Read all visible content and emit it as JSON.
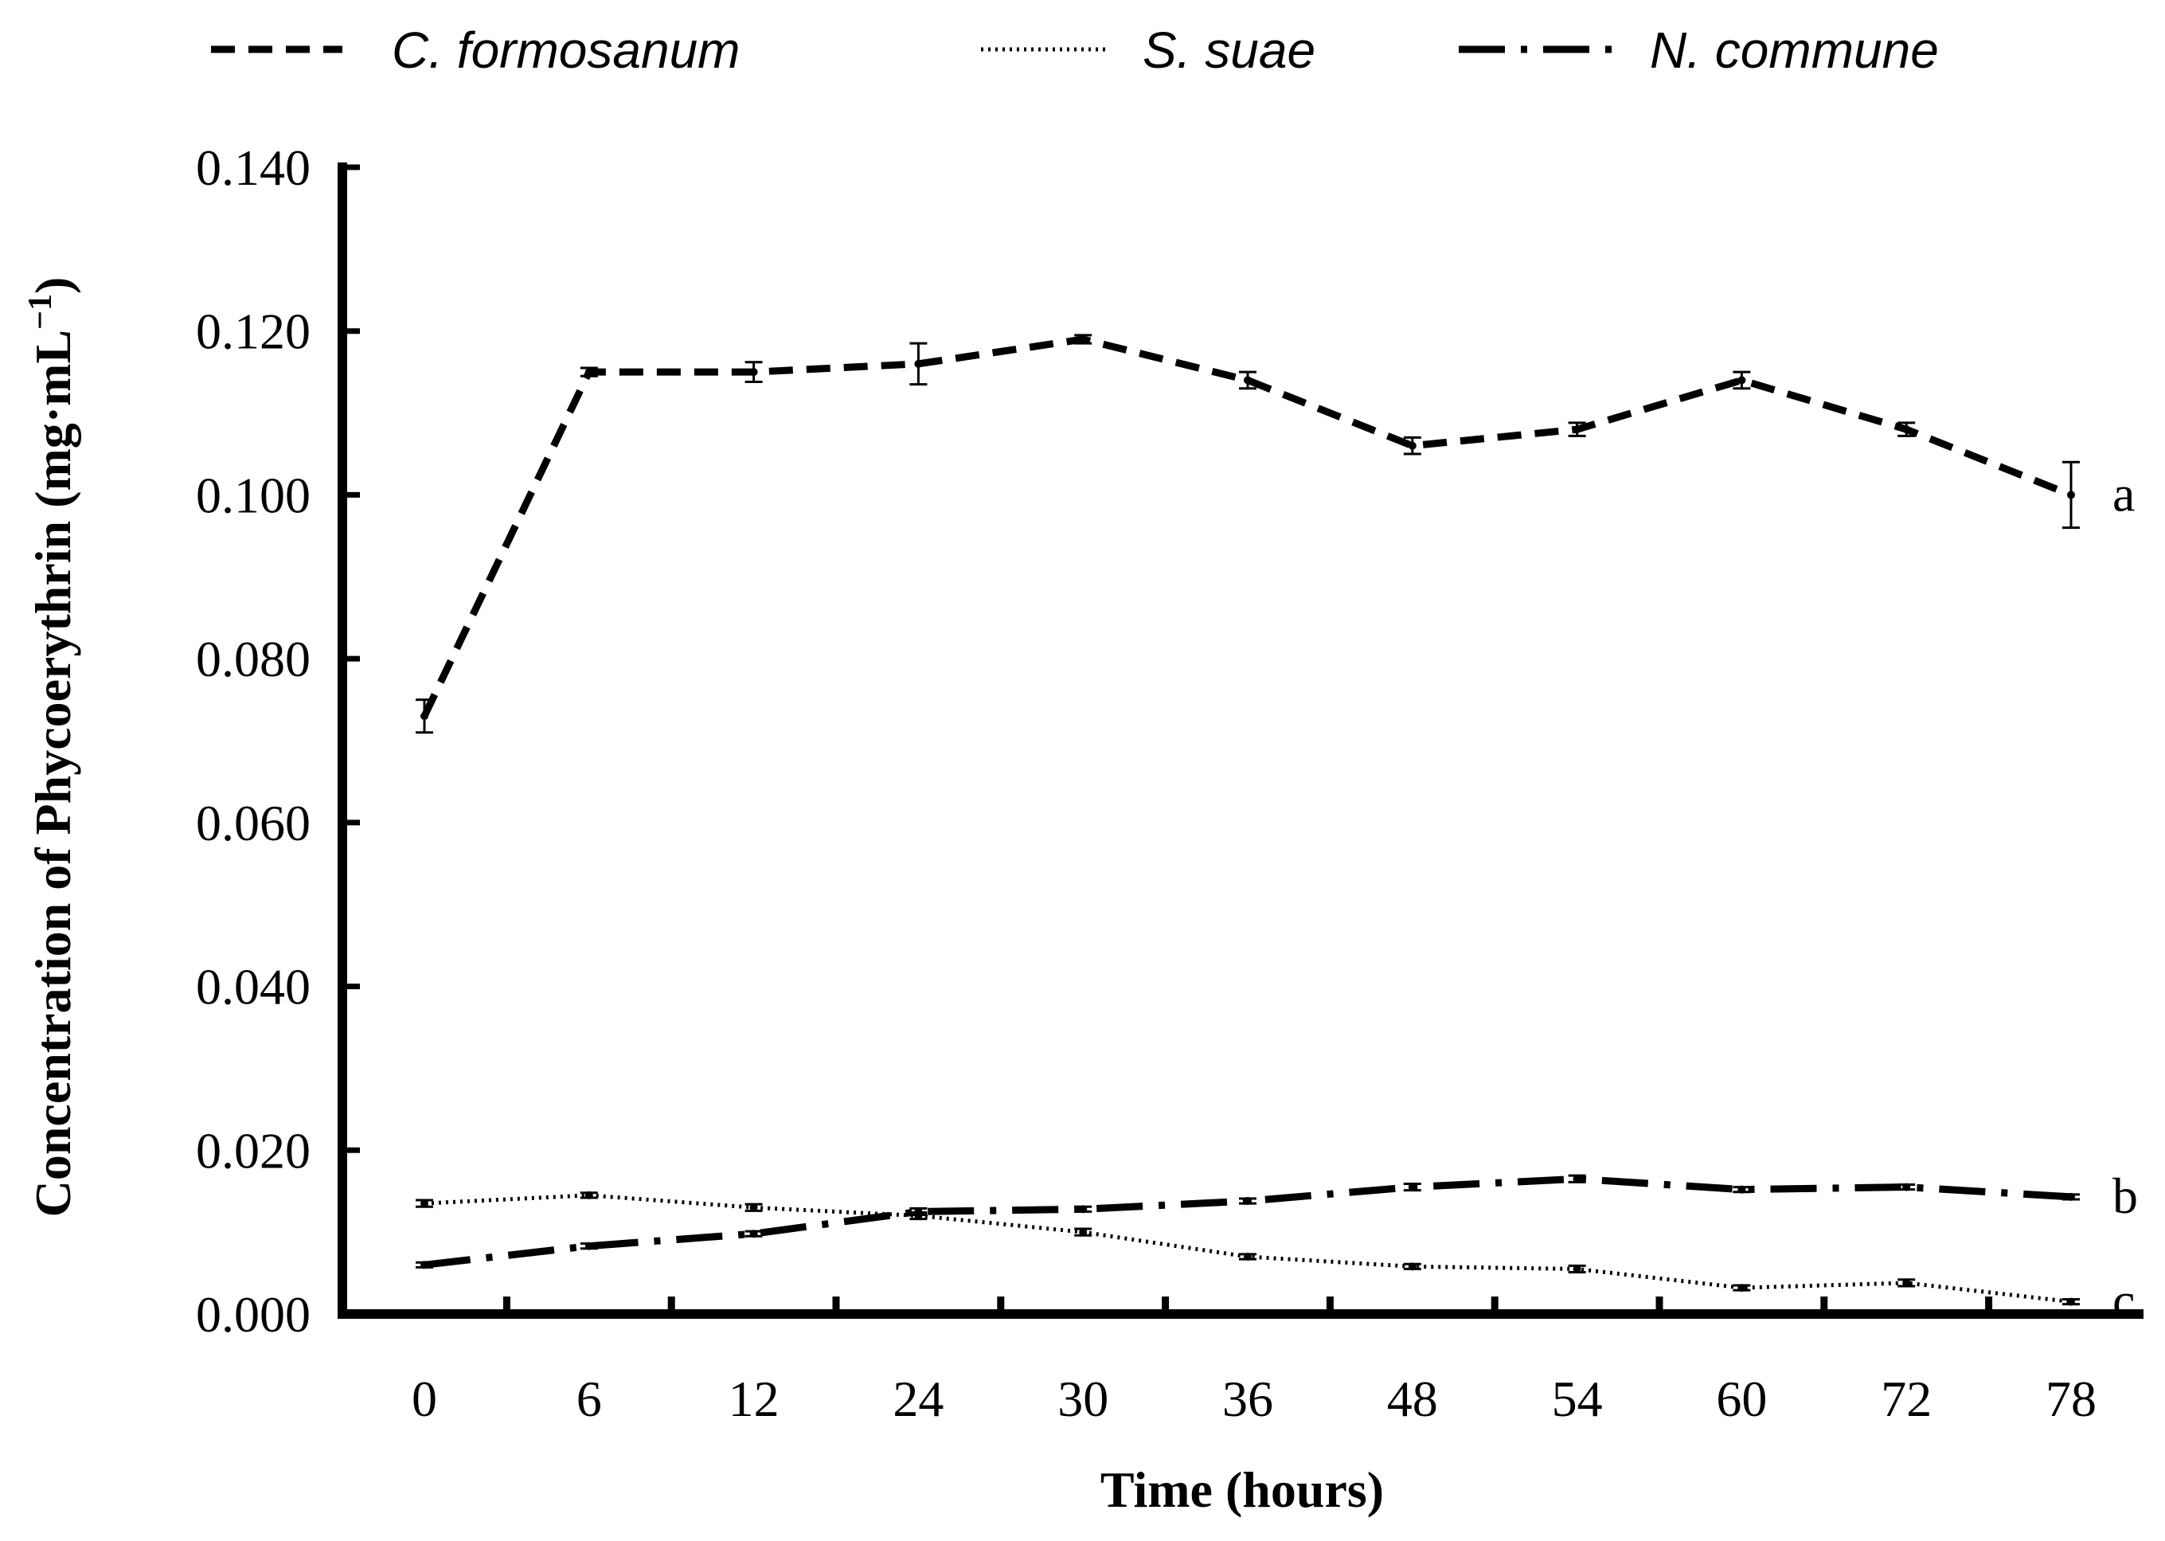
{
  "chart_data": {
    "type": "line",
    "title": "",
    "xlabel": "Time (hours)",
    "ylabel": "Concentration of Phycoerythrin (mg·mL",
    "ylabel_sup": "−1",
    "ylabel_close": ")",
    "categories": [
      "0",
      "6",
      "12",
      "24",
      "30",
      "36",
      "48",
      "54",
      "60",
      "72",
      "78"
    ],
    "ylim": [
      0,
      0.14
    ],
    "yticks": [
      "0.000",
      "0.020",
      "0.040",
      "0.060",
      "0.080",
      "0.100",
      "0.120",
      "0.140"
    ],
    "ytick_values": [
      0,
      0.02,
      0.04,
      0.06,
      0.08,
      0.1,
      0.12,
      0.14
    ],
    "grid": false,
    "legend_position": "top",
    "series": [
      {
        "name": "C. formosanum",
        "style": "dashed",
        "values": [
          0.073,
          0.115,
          0.115,
          0.116,
          0.119,
          0.114,
          0.106,
          0.108,
          0.114,
          0.108,
          0.1
        ],
        "errors": [
          0.002,
          0.0005,
          0.0012,
          0.0025,
          0.0005,
          0.001,
          0.001,
          0.0008,
          0.001,
          0.0008,
          0.004
        ],
        "group_label": "a"
      },
      {
        "name": "S. suae",
        "style": "dotted",
        "values": [
          0.0135,
          0.0145,
          0.013,
          0.012,
          0.01,
          0.007,
          0.0058,
          0.0055,
          0.0032,
          0.0038,
          0.0015
        ],
        "errors": [
          0.0004,
          0.0003,
          0.0004,
          0.0004,
          0.0004,
          0.0003,
          0.0003,
          0.0004,
          0.0003,
          0.0004,
          0.0003
        ],
        "group_label": "c"
      },
      {
        "name": "N. commune",
        "style": "dash-dot",
        "values": [
          0.006,
          0.0083,
          0.0098,
          0.0125,
          0.0128,
          0.0138,
          0.0155,
          0.0165,
          0.0152,
          0.0155,
          0.0143
        ],
        "errors": [
          0.0003,
          0.0003,
          0.0003,
          0.0004,
          0.0003,
          0.0003,
          0.0004,
          0.0004,
          0.0003,
          0.0003,
          0.0003
        ],
        "group_label": "b"
      }
    ]
  }
}
